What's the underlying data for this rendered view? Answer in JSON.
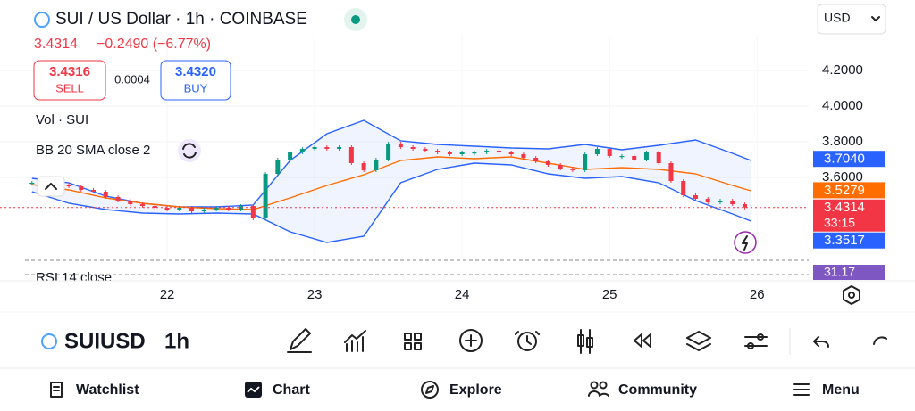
{
  "header": {
    "title": "SUI / US Dollar · 1h · COINBASE",
    "currency": "USD",
    "last_price": "3.4314",
    "change": "−0.2490 (−6.77%)",
    "sell": {
      "price": "3.4316",
      "label": "SELL"
    },
    "spread": "0.0004",
    "buy": {
      "price": "3.4320",
      "label": "BUY"
    }
  },
  "indicators": {
    "volume": "Vol · SUI",
    "bollinger": "BB 20 SMA close 2",
    "rsi": "RSI 14 close",
    "rsi_value": "31.17"
  },
  "chart_data": {
    "type": "candlestick",
    "x": [
      -22,
      -20,
      -18,
      -16,
      -14,
      -12,
      -10,
      -8,
      -6,
      -4,
      -2,
      0,
      2,
      4,
      6,
      8,
      10,
      12,
      14,
      16,
      18,
      20,
      22,
      24,
      26,
      28,
      30,
      32,
      34,
      36,
      38,
      40,
      42,
      44,
      46,
      48,
      50,
      52,
      54,
      56,
      58,
      60,
      62,
      64,
      66,
      68,
      70,
      72,
      74,
      76,
      78,
      80,
      82,
      84,
      86,
      88,
      90,
      92,
      94
    ],
    "values": [
      3.57,
      3.58,
      3.56,
      3.55,
      3.53,
      3.52,
      3.49,
      3.47,
      3.45,
      3.44,
      3.43,
      3.42,
      3.43,
      3.41,
      3.42,
      3.43,
      3.42,
      3.44,
      3.37,
      3.62,
      3.7,
      3.74,
      3.76,
      3.77,
      3.76,
      3.77,
      3.68,
      3.64,
      3.7,
      3.79,
      3.77,
      3.76,
      3.75,
      3.74,
      3.73,
      3.74,
      3.74,
      3.75,
      3.74,
      3.73,
      3.71,
      3.69,
      3.67,
      3.65,
      3.64,
      3.73,
      3.76,
      3.72,
      3.72,
      3.7,
      3.74,
      3.68,
      3.58,
      3.5,
      3.48,
      3.46,
      3.47,
      3.45,
      3.4314
    ],
    "up_color": "#089981",
    "down_color": "#f23645",
    "bands": {
      "x": [
        -22,
        -16,
        -10,
        -4,
        2,
        8,
        14,
        20,
        26,
        32,
        38,
        44,
        50,
        56,
        62,
        68,
        74,
        80,
        86,
        92,
        95
      ],
      "upper": [
        3.595,
        3.57,
        3.495,
        3.455,
        3.435,
        3.435,
        3.445,
        3.695,
        3.845,
        3.92,
        3.805,
        3.785,
        3.775,
        3.765,
        3.76,
        3.785,
        3.755,
        3.78,
        3.81,
        3.735,
        3.695
      ],
      "middle": [
        3.56,
        3.53,
        3.485,
        3.455,
        3.435,
        3.425,
        3.42,
        3.485,
        3.555,
        3.615,
        3.695,
        3.715,
        3.705,
        3.715,
        3.68,
        3.645,
        3.655,
        3.645,
        3.62,
        3.555,
        3.525
      ],
      "lower": [
        3.52,
        3.455,
        3.42,
        3.4,
        3.395,
        3.4,
        3.395,
        3.295,
        3.235,
        3.27,
        3.57,
        3.645,
        3.68,
        3.67,
        3.62,
        3.595,
        3.605,
        3.57,
        3.47,
        3.395,
        3.355
      ],
      "band_color": "#2962ff",
      "middle_color": "#ff6d00"
    },
    "xlim": [
      -27.2,
      104.4
    ],
    "ylim": [
      3.145,
      4.395
    ],
    "xticks": [
      {
        "value": 0,
        "label": "22"
      },
      {
        "value": 24,
        "label": "23"
      },
      {
        "value": 48,
        "label": "24"
      },
      {
        "value": 72,
        "label": "25"
      },
      {
        "value": 96,
        "label": "26"
      }
    ],
    "yticks": [
      {
        "value": 4.2,
        "label": "4.2000"
      },
      {
        "value": 4.0,
        "label": "4.0000"
      },
      {
        "value": 3.8,
        "label": "3.8000"
      },
      {
        "value": 3.6,
        "label": "3.6000"
      }
    ],
    "grid": true,
    "price_tags": [
      {
        "value": 3.704,
        "label": "3.7040",
        "color": "#2962ff"
      },
      {
        "value": 3.5279,
        "label": "3.5279",
        "color": "#ff6d00"
      },
      {
        "value": 3.4314,
        "label": "3.4314",
        "sublabel": "33:15",
        "color": "#f23645"
      },
      {
        "value": 3.3517,
        "label": "3.3517",
        "color": "#2962ff"
      }
    ]
  },
  "toolbar": {
    "symbol": "SUIUSD",
    "interval": "1h"
  },
  "nav": [
    "Watchlist",
    "Chart",
    "Explore",
    "Community",
    "Menu"
  ]
}
